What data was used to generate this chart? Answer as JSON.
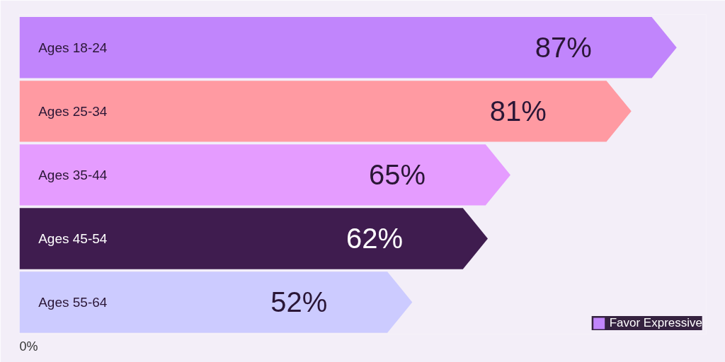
{
  "chart_data": {
    "type": "bar",
    "orientation": "horizontal",
    "categories": [
      "Ages 18-24",
      "Ages 25-34",
      "Ages 35-44",
      "Ages 45-54",
      "Ages 55-64"
    ],
    "series": [
      {
        "name": "Favor Expressive",
        "colors": [
          "#c185fc",
          "#ff9aa2",
          "#e59cff",
          "#3f1c4f",
          "#cccbff"
        ],
        "values": [
          87,
          81,
          65,
          62,
          52
        ],
        "value_labels": [
          "87%",
          "81%",
          "65%",
          "62%",
          "52%"
        ]
      }
    ],
    "annotations": [
      "0%"
    ],
    "legend": "bottom right",
    "grid": false
  }
}
